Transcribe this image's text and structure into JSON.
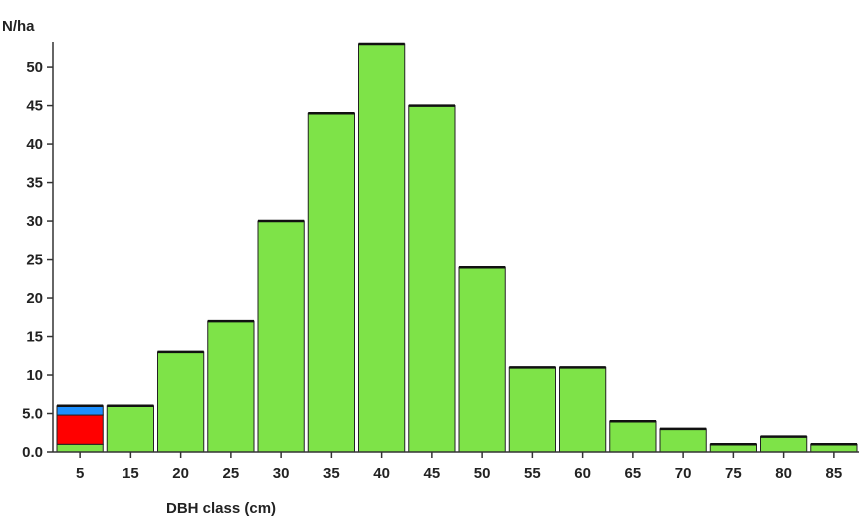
{
  "chart_data": {
    "type": "bar",
    "stacked": true,
    "ylabel": "N/ha",
    "xlabel": "DBH class (cm)",
    "ylim": [
      0,
      53
    ],
    "yticks": [
      0.0,
      5.0,
      10,
      15,
      20,
      25,
      30,
      35,
      40,
      45,
      50
    ],
    "ytick_labels": [
      "0.0",
      "5.0",
      "10",
      "15",
      "20",
      "25",
      "30",
      "35",
      "40",
      "45",
      "50"
    ],
    "categories": [
      "5",
      "15",
      "20",
      "25",
      "30",
      "35",
      "40",
      "45",
      "50",
      "55",
      "60",
      "65",
      "70",
      "75",
      "80",
      "85"
    ],
    "series": [
      {
        "color": "#7ee348",
        "values": [
          1,
          6,
          13,
          17,
          30,
          44,
          53,
          45,
          24,
          11,
          11,
          4,
          3,
          1,
          2,
          1
        ]
      },
      {
        "color": "#ff0000",
        "values": [
          3.8,
          0,
          0,
          0,
          0,
          0,
          0,
          0,
          0,
          0,
          0,
          0,
          0,
          0,
          0,
          0
        ]
      },
      {
        "color": "#1e90ff",
        "values": [
          1.2,
          0,
          0,
          0,
          0,
          0,
          0,
          0,
          0,
          0,
          0,
          0,
          0,
          0,
          0,
          0
        ]
      }
    ],
    "grid": false,
    "legend": "none"
  }
}
